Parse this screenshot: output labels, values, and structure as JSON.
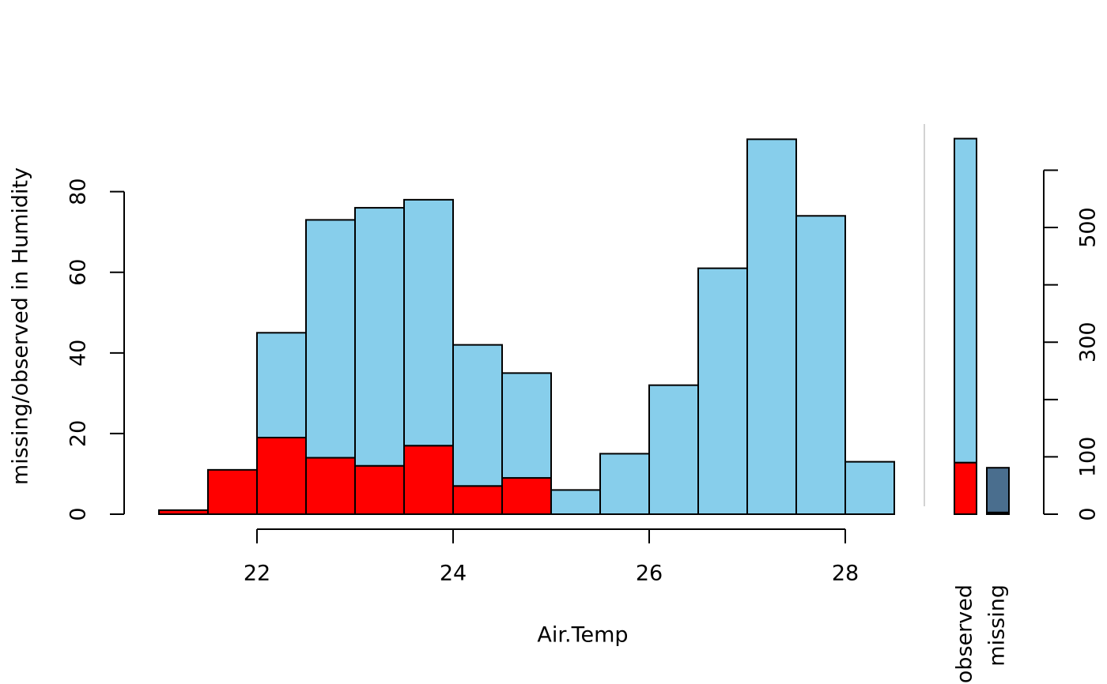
{
  "chart_data": {
    "type": "histogram",
    "xlabel": "Air.Temp",
    "ylabel": "missing/observed in Humidity",
    "bins": [
      21,
      21.5,
      22,
      22.5,
      23,
      23.5,
      24,
      24.5,
      25,
      25.5,
      26,
      26.5,
      27,
      27.5,
      28,
      28.5
    ],
    "series": [
      {
        "color": "#ff0000",
        "values": [
          1,
          11,
          19,
          14,
          12,
          17,
          7,
          9,
          0,
          0,
          0,
          0,
          0,
          0,
          0
        ]
      },
      {
        "color": "#87ceeb",
        "values": [
          0,
          0,
          26,
          59,
          64,
          61,
          35,
          26,
          6,
          15,
          32,
          61,
          93,
          74,
          13
        ]
      }
    ],
    "xlim": [
      21,
      28.5
    ],
    "xticks": [
      22,
      24,
      26,
      28
    ],
    "ylim": [
      0,
      96
    ],
    "yticks": [
      0,
      20,
      40,
      60,
      80
    ],
    "side": {
      "categories": [
        "observed",
        "missing"
      ],
      "bars": [
        [
          {
            "color": "#ff0000",
            "value": 90
          },
          {
            "color": "#87ceeb",
            "value": 565
          }
        ],
        [
          {
            "color": "#000000",
            "value": 3
          },
          {
            "color": "#4a6e8e",
            "value": 78
          }
        ]
      ],
      "y2lim": [
        0,
        675
      ],
      "y2ticks": [
        0,
        100,
        300,
        500
      ],
      "y2minor_ticks": [
        200,
        400,
        600
      ]
    }
  }
}
